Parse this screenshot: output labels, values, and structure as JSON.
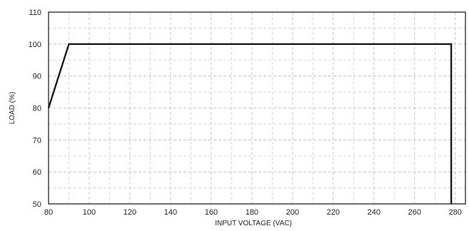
{
  "chart_data": {
    "type": "line",
    "xlabel": "INPUT VOLTAGE (VAC)",
    "ylabel": "LOAD (%)",
    "xlim": [
      80,
      285
    ],
    "ylim": [
      50,
      110
    ],
    "x_ticks": [
      80,
      100,
      120,
      140,
      160,
      180,
      200,
      220,
      240,
      260,
      280
    ],
    "y_ticks": [
      50,
      60,
      70,
      80,
      90,
      100,
      110
    ],
    "x_minor_grid": [
      90,
      110,
      130,
      150,
      170,
      190,
      210,
      230,
      250,
      270
    ],
    "y_minor_grid": [
      55,
      65,
      75,
      85,
      95,
      105
    ],
    "grid": true,
    "series": [
      {
        "x": [
          80,
          90,
          278,
          278
        ],
        "y": [
          80,
          100,
          100,
          50
        ]
      }
    ]
  }
}
